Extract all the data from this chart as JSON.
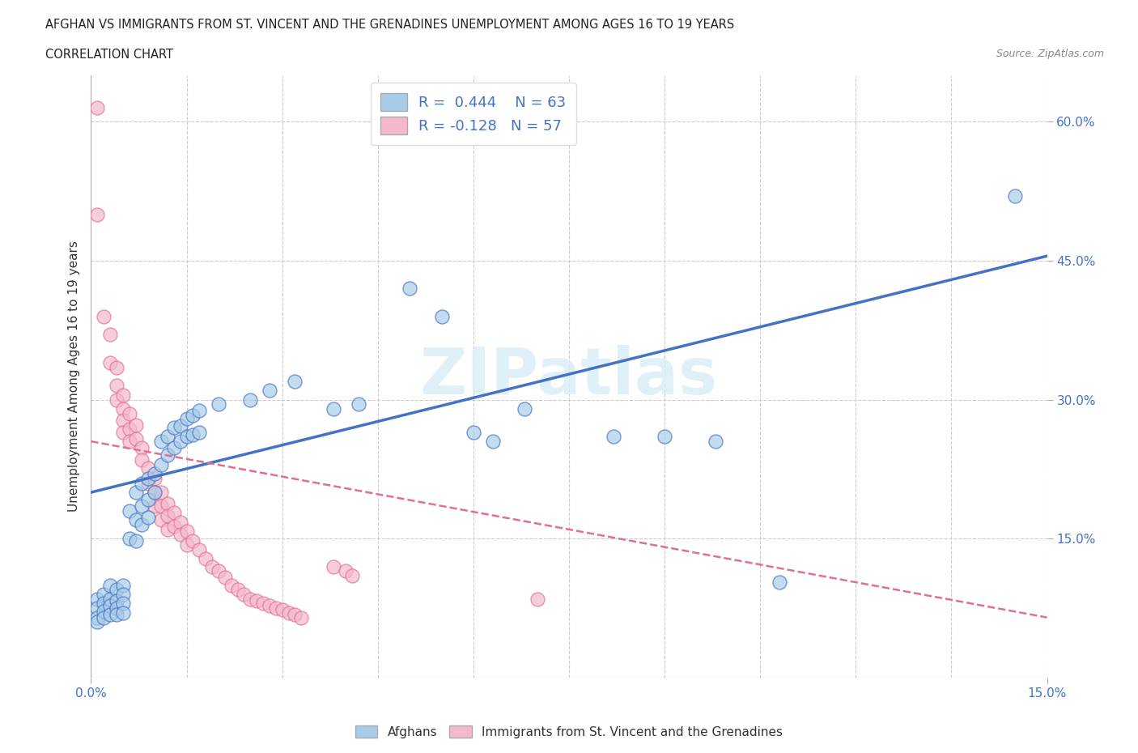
{
  "title1": "AFGHAN VS IMMIGRANTS FROM ST. VINCENT AND THE GRENADINES UNEMPLOYMENT AMONG AGES 16 TO 19 YEARS",
  "title2": "CORRELATION CHART",
  "source": "Source: ZipAtlas.com",
  "ylabel": "Unemployment Among Ages 16 to 19 years",
  "xlim": [
    0.0,
    0.15
  ],
  "ylim": [
    0.0,
    0.65
  ],
  "xticks": [
    0.0,
    0.015,
    0.03,
    0.045,
    0.06,
    0.075,
    0.09,
    0.105,
    0.12,
    0.135,
    0.15
  ],
  "yticks": [
    0.0,
    0.15,
    0.3,
    0.45,
    0.6
  ],
  "watermark": "ZIPatlas",
  "color_blue": "#a8cce8",
  "color_pink": "#f4b8cb",
  "line_blue": "#4472c4",
  "line_pink": "#e07090",
  "grid_color": "#cccccc",
  "bg_color": "#ffffff",
  "blue_scatter": [
    [
      0.001,
      0.085
    ],
    [
      0.001,
      0.075
    ],
    [
      0.001,
      0.065
    ],
    [
      0.001,
      0.06
    ],
    [
      0.002,
      0.09
    ],
    [
      0.002,
      0.08
    ],
    [
      0.002,
      0.072
    ],
    [
      0.002,
      0.065
    ],
    [
      0.003,
      0.1
    ],
    [
      0.003,
      0.085
    ],
    [
      0.003,
      0.078
    ],
    [
      0.003,
      0.068
    ],
    [
      0.004,
      0.095
    ],
    [
      0.004,
      0.083
    ],
    [
      0.004,
      0.075
    ],
    [
      0.004,
      0.068
    ],
    [
      0.005,
      0.1
    ],
    [
      0.005,
      0.09
    ],
    [
      0.005,
      0.08
    ],
    [
      0.005,
      0.07
    ],
    [
      0.006,
      0.18
    ],
    [
      0.006,
      0.15
    ],
    [
      0.007,
      0.2
    ],
    [
      0.007,
      0.17
    ],
    [
      0.007,
      0.148
    ],
    [
      0.008,
      0.21
    ],
    [
      0.008,
      0.185
    ],
    [
      0.008,
      0.165
    ],
    [
      0.009,
      0.215
    ],
    [
      0.009,
      0.192
    ],
    [
      0.009,
      0.173
    ],
    [
      0.01,
      0.22
    ],
    [
      0.01,
      0.2
    ],
    [
      0.011,
      0.255
    ],
    [
      0.011,
      0.23
    ],
    [
      0.012,
      0.26
    ],
    [
      0.012,
      0.24
    ],
    [
      0.013,
      0.27
    ],
    [
      0.013,
      0.248
    ],
    [
      0.014,
      0.272
    ],
    [
      0.014,
      0.255
    ],
    [
      0.015,
      0.28
    ],
    [
      0.015,
      0.26
    ],
    [
      0.016,
      0.283
    ],
    [
      0.016,
      0.262
    ],
    [
      0.017,
      0.288
    ],
    [
      0.017,
      0.265
    ],
    [
      0.02,
      0.295
    ],
    [
      0.025,
      0.3
    ],
    [
      0.028,
      0.31
    ],
    [
      0.032,
      0.32
    ],
    [
      0.038,
      0.29
    ],
    [
      0.042,
      0.295
    ],
    [
      0.05,
      0.42
    ],
    [
      0.055,
      0.39
    ],
    [
      0.06,
      0.265
    ],
    [
      0.063,
      0.255
    ],
    [
      0.068,
      0.29
    ],
    [
      0.082,
      0.26
    ],
    [
      0.09,
      0.26
    ],
    [
      0.098,
      0.255
    ],
    [
      0.108,
      0.103
    ],
    [
      0.145,
      0.52
    ]
  ],
  "pink_scatter": [
    [
      0.001,
      0.615
    ],
    [
      0.001,
      0.5
    ],
    [
      0.002,
      0.39
    ],
    [
      0.003,
      0.37
    ],
    [
      0.003,
      0.34
    ],
    [
      0.004,
      0.335
    ],
    [
      0.004,
      0.315
    ],
    [
      0.004,
      0.3
    ],
    [
      0.005,
      0.305
    ],
    [
      0.005,
      0.29
    ],
    [
      0.005,
      0.278
    ],
    [
      0.005,
      0.265
    ],
    [
      0.006,
      0.285
    ],
    [
      0.006,
      0.268
    ],
    [
      0.006,
      0.255
    ],
    [
      0.007,
      0.273
    ],
    [
      0.007,
      0.258
    ],
    [
      0.008,
      0.248
    ],
    [
      0.008,
      0.235
    ],
    [
      0.009,
      0.226
    ],
    [
      0.009,
      0.21
    ],
    [
      0.01,
      0.215
    ],
    [
      0.01,
      0.2
    ],
    [
      0.01,
      0.185
    ],
    [
      0.011,
      0.2
    ],
    [
      0.011,
      0.185
    ],
    [
      0.011,
      0.17
    ],
    [
      0.012,
      0.188
    ],
    [
      0.012,
      0.175
    ],
    [
      0.012,
      0.16
    ],
    [
      0.013,
      0.178
    ],
    [
      0.013,
      0.163
    ],
    [
      0.014,
      0.168
    ],
    [
      0.014,
      0.155
    ],
    [
      0.015,
      0.158
    ],
    [
      0.015,
      0.143
    ],
    [
      0.016,
      0.148
    ],
    [
      0.017,
      0.138
    ],
    [
      0.018,
      0.128
    ],
    [
      0.019,
      0.12
    ],
    [
      0.02,
      0.115
    ],
    [
      0.021,
      0.108
    ],
    [
      0.022,
      0.1
    ],
    [
      0.023,
      0.095
    ],
    [
      0.024,
      0.09
    ],
    [
      0.025,
      0.085
    ],
    [
      0.026,
      0.083
    ],
    [
      0.027,
      0.08
    ],
    [
      0.028,
      0.078
    ],
    [
      0.029,
      0.075
    ],
    [
      0.03,
      0.073
    ],
    [
      0.031,
      0.07
    ],
    [
      0.032,
      0.068
    ],
    [
      0.033,
      0.065
    ],
    [
      0.038,
      0.12
    ],
    [
      0.04,
      0.115
    ],
    [
      0.041,
      0.11
    ],
    [
      0.07,
      0.085
    ]
  ],
  "blue_line_x": [
    0.0,
    0.15
  ],
  "blue_line_y": [
    0.2,
    0.455
  ],
  "pink_line_x": [
    0.0,
    0.15
  ],
  "pink_line_y": [
    0.255,
    0.065
  ]
}
